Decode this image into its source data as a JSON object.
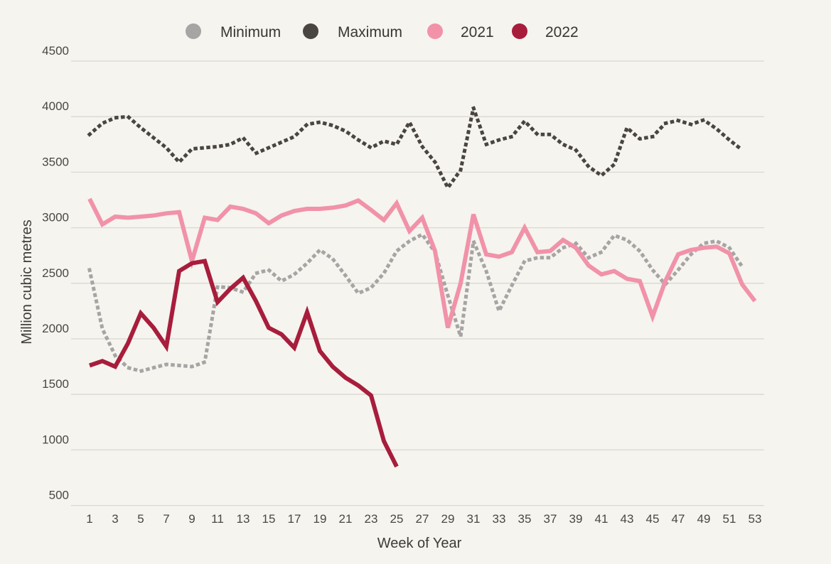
{
  "chart_data": {
    "type": "line",
    "title": "",
    "xlabel": "Week of Year",
    "ylabel": "Million cubic metres",
    "xlim": [
      1,
      53
    ],
    "ylim": [
      500,
      4500
    ],
    "y_ticks": [
      4500,
      4000,
      3500,
      3000,
      2500,
      2000,
      1500,
      1000,
      500
    ],
    "x_ticks": [
      1,
      3,
      5,
      7,
      9,
      11,
      13,
      15,
      17,
      19,
      21,
      23,
      25,
      27,
      29,
      31,
      33,
      35,
      37,
      39,
      41,
      43,
      45,
      47,
      49,
      51,
      53
    ],
    "grid": "horizontal",
    "legend_position": "top-center",
    "x": [
      1,
      2,
      3,
      4,
      5,
      6,
      7,
      8,
      9,
      10,
      11,
      12,
      13,
      14,
      15,
      16,
      17,
      18,
      19,
      20,
      21,
      22,
      23,
      24,
      25,
      26,
      27,
      28,
      29,
      30,
      31,
      32,
      33,
      34,
      35,
      36,
      37,
      38,
      39,
      40,
      41,
      42,
      43,
      44,
      45,
      46,
      47,
      48,
      49,
      50,
      51,
      52,
      53
    ],
    "series": [
      {
        "name": "Minimum",
        "style": "dotted",
        "color": "#a7a4a4",
        "values": [
          2620,
          2090,
          1850,
          1740,
          1710,
          1740,
          1770,
          1760,
          1750,
          1790,
          2470,
          2460,
          2420,
          2590,
          2620,
          2520,
          2580,
          2680,
          2800,
          2720,
          2570,
          2410,
          2460,
          2590,
          2790,
          2880,
          2940,
          2780,
          2390,
          2020,
          2880,
          2610,
          2250,
          2480,
          2700,
          2730,
          2730,
          2820,
          2860,
          2730,
          2780,
          2930,
          2890,
          2790,
          2620,
          2490,
          2620,
          2760,
          2860,
          2880,
          2820,
          2650,
          null
        ]
      },
      {
        "name": "Maximum",
        "style": "dotted",
        "color": "#4a4540",
        "values": [
          3840,
          3940,
          3990,
          4000,
          3900,
          3810,
          3720,
          3590,
          3710,
          3720,
          3730,
          3750,
          3810,
          3670,
          3720,
          3770,
          3820,
          3930,
          3950,
          3920,
          3870,
          3790,
          3720,
          3780,
          3750,
          3950,
          3730,
          3590,
          3360,
          3520,
          4080,
          3750,
          3790,
          3820,
          3960,
          3840,
          3840,
          3750,
          3700,
          3550,
          3470,
          3570,
          3900,
          3800,
          3820,
          3940,
          3965,
          3930,
          3970,
          3890,
          3790,
          3700,
          null
        ]
      },
      {
        "name": "2021",
        "style": "solid",
        "color": "#f192a8",
        "values": [
          3260,
          3030,
          3100,
          3090,
          3100,
          3110,
          3130,
          3140,
          2700,
          3090,
          3070,
          3190,
          3170,
          3130,
          3040,
          3110,
          3150,
          3170,
          3170,
          3180,
          3200,
          3245,
          3160,
          3070,
          3220,
          2970,
          3090,
          2790,
          2100,
          2500,
          3120,
          2760,
          2740,
          2780,
          3000,
          2780,
          2790,
          2890,
          2820,
          2660,
          2580,
          2610,
          2540,
          2520,
          2200,
          2520,
          2760,
          2800,
          2820,
          2830,
          2770,
          2490,
          2340
        ]
      },
      {
        "name": "2022",
        "style": "solid",
        "color": "#a81d3c",
        "values": [
          1760,
          1800,
          1750,
          1960,
          2230,
          2100,
          1930,
          2610,
          2680,
          2700,
          2330,
          2450,
          2550,
          2340,
          2100,
          2040,
          1920,
          2240,
          1890,
          1750,
          1650,
          1580,
          1490,
          1080,
          850,
          null,
          null,
          null,
          null,
          null,
          null,
          null,
          null,
          null,
          null,
          null,
          null,
          null,
          null,
          null,
          null,
          null,
          null,
          null,
          null,
          null,
          null,
          null,
          null,
          null,
          null,
          null,
          null
        ]
      }
    ]
  },
  "colors": {
    "background": "#f5f4ef",
    "gridline": "#d9d7d1",
    "tick_text": "#4b4741",
    "axis_title_text": "#3f3b37",
    "legend_text": "#3a3632",
    "series_minimum": "#a7a4a4",
    "series_maximum": "#4a4540",
    "series_2021": "#f192a8",
    "series_2022": "#a81d3c"
  }
}
